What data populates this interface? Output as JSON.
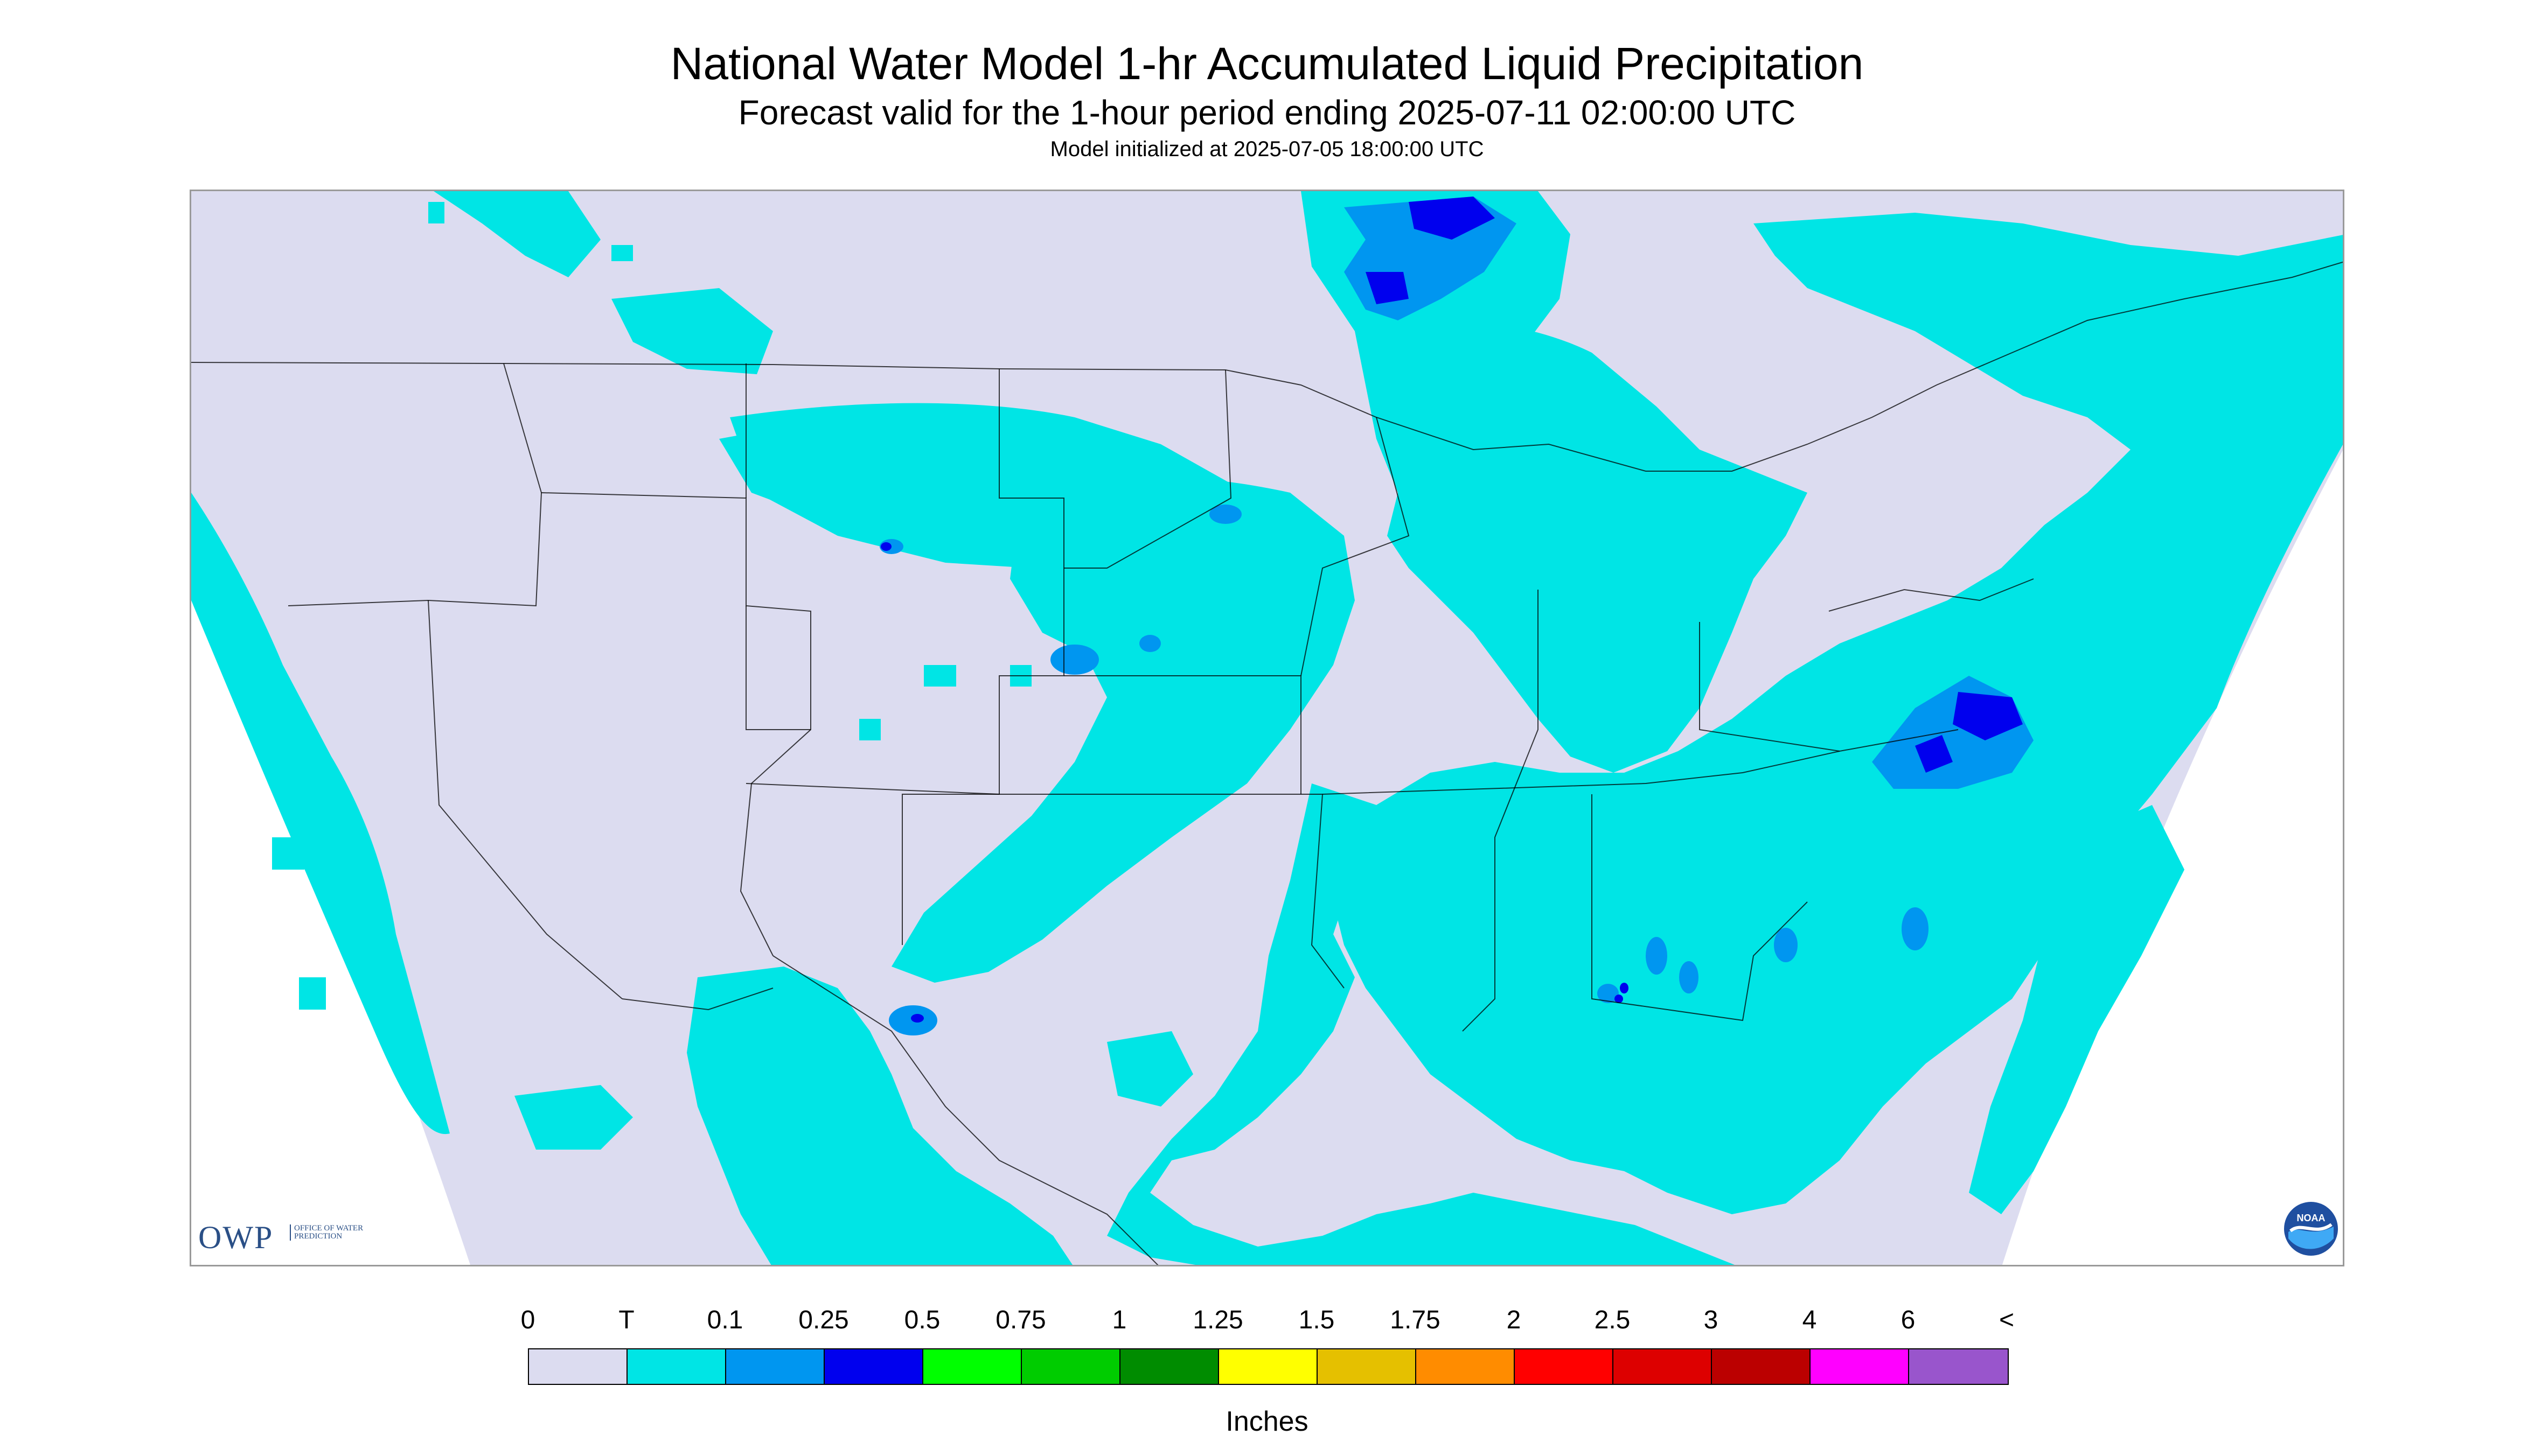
{
  "title": "National Water Model 1-hr Accumulated Liquid Precipitation",
  "subtitle": "Forecast valid for the 1-hour period ending 2025-07-11 02:00:00 UTC",
  "init_line": "Model initialized at 2025-07-05 18:00:00 UTC",
  "logos": {
    "owp_text": "OWP",
    "owp_sub": "OFFICE OF WATER PREDICTION",
    "noaa_text": "NOAA"
  },
  "legend": {
    "labels": [
      "0",
      "T",
      "0.1",
      "0.25",
      "0.5",
      "0.75",
      "1",
      "1.25",
      "1.5",
      "1.75",
      "2",
      "2.5",
      "3",
      "4",
      "6",
      "<"
    ],
    "colors": [
      "#dcdcf0",
      "#00e5e5",
      "#0096f0",
      "#0000ee",
      "#00ff00",
      "#00cc00",
      "#008c00",
      "#ffff00",
      "#e5c000",
      "#ff8c00",
      "#ff0000",
      "#dd0000",
      "#bb0000",
      "#ff00ff",
      "#9955cc"
    ],
    "units": "Inches"
  },
  "map_colors": {
    "out_of_domain": "#ffffff",
    "no_precip": "#dcdcf0",
    "trace": "#00e5e5",
    "light": "#0096f0",
    "moderate": "#0000ee",
    "boundary": "#000000"
  }
}
